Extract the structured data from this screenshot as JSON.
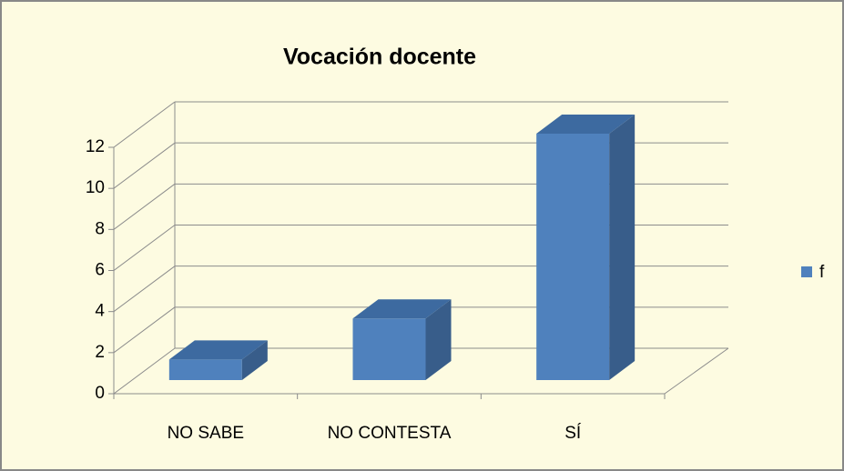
{
  "chart_data": {
    "type": "bar3d",
    "title": "Vocación docente",
    "categories": [
      "NO SABE",
      "NO CONTESTA",
      "SÍ"
    ],
    "series": [
      {
        "name": "f",
        "color": "#4f81bd",
        "values": [
          1,
          3,
          12
        ]
      }
    ],
    "ylim": [
      0,
      12
    ],
    "yticks": [
      0,
      2,
      4,
      6,
      8,
      10,
      12
    ],
    "grid": true,
    "legend": "right"
  }
}
